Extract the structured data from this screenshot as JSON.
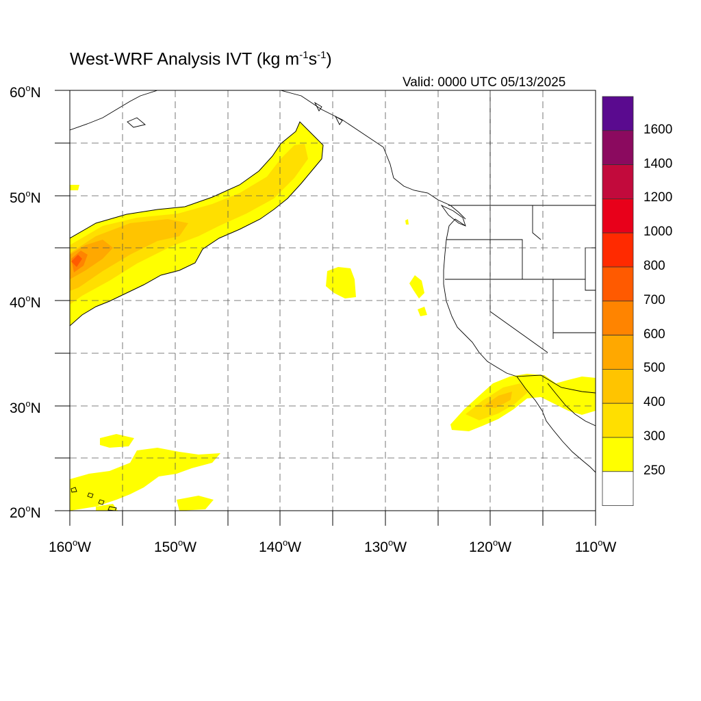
{
  "map": {
    "title": {
      "main": "West-WRF Analysis IVT (kg m",
      "exp1": "-1",
      "mid": "s",
      "exp2": "-1",
      "end": ")"
    },
    "valid": "Valid: 0000 UTC 05/13/2025",
    "lat_labels": [
      "60",
      "50",
      "40",
      "30",
      "20"
    ],
    "lat_suffix": "N",
    "lon_labels": [
      "160",
      "150",
      "140",
      "130",
      "120",
      "110"
    ],
    "lon_suffix": "W",
    "degree_symbol": "o",
    "extent": {
      "lon_min": -160,
      "lon_max": -110,
      "lat_min": 20,
      "lat_max": 60
    },
    "grid": "dashed every 5 degrees"
  },
  "colorbar": {
    "labels": [
      "1600",
      "1400",
      "1200",
      "1000",
      "800",
      "700",
      "600",
      "500",
      "400",
      "300",
      "250"
    ],
    "colors": [
      "#5a0a8f",
      "#8b0a5f",
      "#c20a3c",
      "#e8001a",
      "#ff2a00",
      "#ff5a00",
      "#ff8400",
      "#ffa800",
      "#ffc400",
      "#ffdf00",
      "#ffff00",
      "#ffffff"
    ]
  }
}
